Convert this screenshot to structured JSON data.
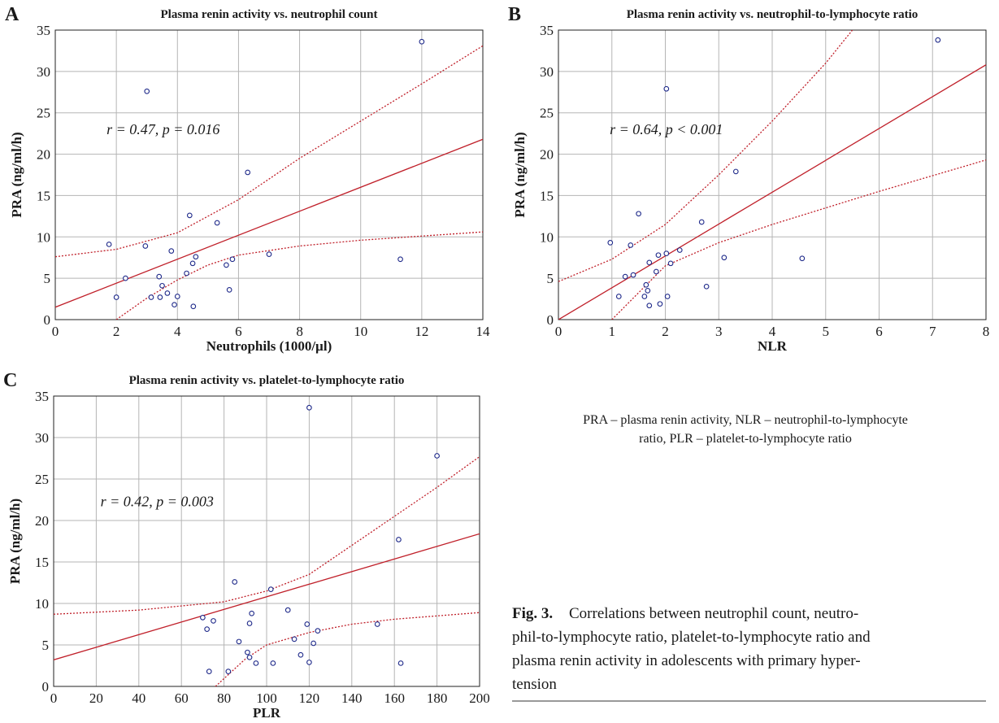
{
  "chart_data": [
    {
      "type": "scatter",
      "panel": "A",
      "title": "Plasma renin activity vs. neutrophil count",
      "xlabel": "Neutrophils (1000/µl)",
      "ylabel": "PRA (ng/ml/h)",
      "annotation": "r = 0.47, p = 0.016",
      "x": [
        2.0,
        1.76,
        2.3,
        2.95,
        3.0,
        3.14,
        3.4,
        3.43,
        3.5,
        3.67,
        3.8,
        3.9,
        4.0,
        4.3,
        4.4,
        4.52,
        4.5,
        4.6,
        5.3,
        5.6,
        5.7,
        5.8,
        6.3,
        7.0,
        11.3,
        12.0
      ],
      "values": [
        2.7,
        9.1,
        5.0,
        8.9,
        27.6,
        2.7,
        5.2,
        2.7,
        4.1,
        3.2,
        8.3,
        1.8,
        2.8,
        5.6,
        12.6,
        1.6,
        6.8,
        7.6,
        11.7,
        6.6,
        3.6,
        7.3,
        17.8,
        7.9,
        7.3,
        33.6
      ],
      "point_color": "#1f2a8a",
      "line_color": "#c0202a",
      "fit_line": {
        "x": [
          0,
          14
        ],
        "values": [
          1.5,
          21.8
        ]
      },
      "upper_band": {
        "x": [
          0,
          2,
          4,
          6,
          8,
          10,
          12,
          14
        ],
        "values": [
          7.6,
          8.5,
          10.5,
          14.5,
          19.5,
          24,
          28.5,
          33.1
        ]
      },
      "lower_band": {
        "x": [
          2,
          3,
          4,
          5,
          6,
          8,
          10,
          12,
          14
        ],
        "values": [
          0,
          2.6,
          4.8,
          6.6,
          7.8,
          8.9,
          9.6,
          10.1,
          10.6
        ]
      },
      "xlim": [
        0,
        14
      ],
      "ylim": [
        0,
        35
      ],
      "xticks": [
        0,
        2,
        4,
        6,
        8,
        10,
        12,
        14
      ],
      "yticks": [
        0,
        5,
        10,
        15,
        20,
        25,
        30,
        35
      ],
      "grid": true
    },
    {
      "type": "scatter",
      "panel": "B",
      "title": "Plasma renin activity vs. neutrophil-to-lymphocyte ratio",
      "xlabel": "NLR",
      "ylabel": "PRA (ng/ml/h)",
      "annotation": "r = 0.64, p < 0.001",
      "x": [
        0.97,
        1.13,
        1.25,
        1.35,
        1.4,
        1.5,
        1.61,
        1.64,
        1.67,
        1.7,
        1.7,
        1.83,
        1.87,
        1.9,
        2.02,
        2.02,
        2.04,
        2.1,
        2.27,
        2.68,
        2.77,
        3.1,
        3.32,
        4.56,
        7.1
      ],
      "values": [
        9.3,
        2.8,
        5.2,
        9.0,
        5.4,
        12.8,
        2.8,
        4.2,
        3.5,
        6.9,
        1.7,
        5.8,
        7.8,
        1.9,
        8.0,
        27.9,
        2.8,
        6.8,
        8.4,
        11.8,
        4.0,
        7.5,
        17.9,
        7.4,
        33.8
      ],
      "point_color": "#1f2a8a",
      "line_color": "#c0202a",
      "fit_line": {
        "x": [
          0,
          8
        ],
        "values": [
          0,
          30.8
        ]
      },
      "upper_band": {
        "x": [
          0,
          1,
          2,
          3,
          4,
          5,
          5.5
        ],
        "values": [
          4.6,
          7.3,
          11.5,
          17.5,
          24,
          31,
          35
        ]
      },
      "lower_band": {
        "x": [
          1,
          2,
          3,
          4,
          5,
          6,
          7,
          8
        ],
        "values": [
          0,
          6.5,
          9.3,
          11.5,
          13.5,
          15.5,
          17.4,
          19.3
        ]
      },
      "xlim": [
        0,
        8
      ],
      "ylim": [
        0,
        35
      ],
      "xticks": [
        0,
        1,
        2,
        3,
        4,
        5,
        6,
        7,
        8
      ],
      "yticks": [
        0,
        5,
        10,
        15,
        20,
        25,
        30,
        35
      ],
      "grid": true
    },
    {
      "type": "scatter",
      "panel": "C",
      "title": "Plasma renin activity vs. platelet-to-lymphocyte ratio",
      "xlabel": "PLR",
      "ylabel": "PRA (ng/ml/h)",
      "annotation": "r = 0.42, p = 0.003",
      "x": [
        70,
        72,
        73,
        75,
        82,
        85,
        87,
        91,
        92,
        92,
        93,
        95,
        102,
        103,
        110,
        113,
        116,
        119,
        120,
        120,
        122,
        124,
        152,
        162,
        163,
        180
      ],
      "values": [
        8.3,
        6.9,
        1.8,
        7.9,
        1.8,
        12.6,
        5.4,
        4.1,
        3.5,
        7.6,
        8.8,
        2.8,
        11.7,
        2.8,
        9.2,
        5.7,
        3.8,
        7.5,
        2.9,
        33.6,
        5.2,
        6.7,
        7.5,
        17.7,
        2.8,
        27.8
      ],
      "point_color": "#1f2a8a",
      "line_color": "#c0202a",
      "fit_line": {
        "x": [
          0,
          200
        ],
        "values": [
          3.2,
          18.4
        ]
      },
      "upper_band": {
        "x": [
          0,
          40,
          80,
          100,
          120,
          140,
          160,
          180,
          200
        ],
        "values": [
          8.7,
          9.2,
          10.2,
          11.5,
          13.5,
          17,
          20.5,
          24,
          27.7
        ]
      },
      "lower_band": {
        "x": [
          76,
          90,
          100,
          120,
          140,
          160,
          180,
          200
        ],
        "values": [
          0,
          3.3,
          5,
          6.5,
          7.5,
          8.1,
          8.5,
          8.9
        ]
      },
      "xlim": [
        0,
        200
      ],
      "ylim": [
        0,
        35
      ],
      "xticks": [
        0,
        20,
        40,
        60,
        80,
        100,
        120,
        140,
        160,
        180,
        200
      ],
      "yticks": [
        0,
        5,
        10,
        15,
        20,
        25,
        30,
        35
      ],
      "grid": true
    }
  ],
  "figure": {
    "abbreviations": [
      "PRA – plasma renin activity, NLR – neutrophil-to-lymphocyte",
      "ratio, PLR – platelet-to-lymphocyte ratio"
    ],
    "caption_label": "Fig. 3.",
    "caption_lines": [
      "Correlations between neutrophil count, neutro-",
      "phil-to-lymphocyte ratio, platelet-to-lymphocyte ratio and",
      "plasma renin activity in adolescents with primary hyper-",
      "tension"
    ]
  }
}
